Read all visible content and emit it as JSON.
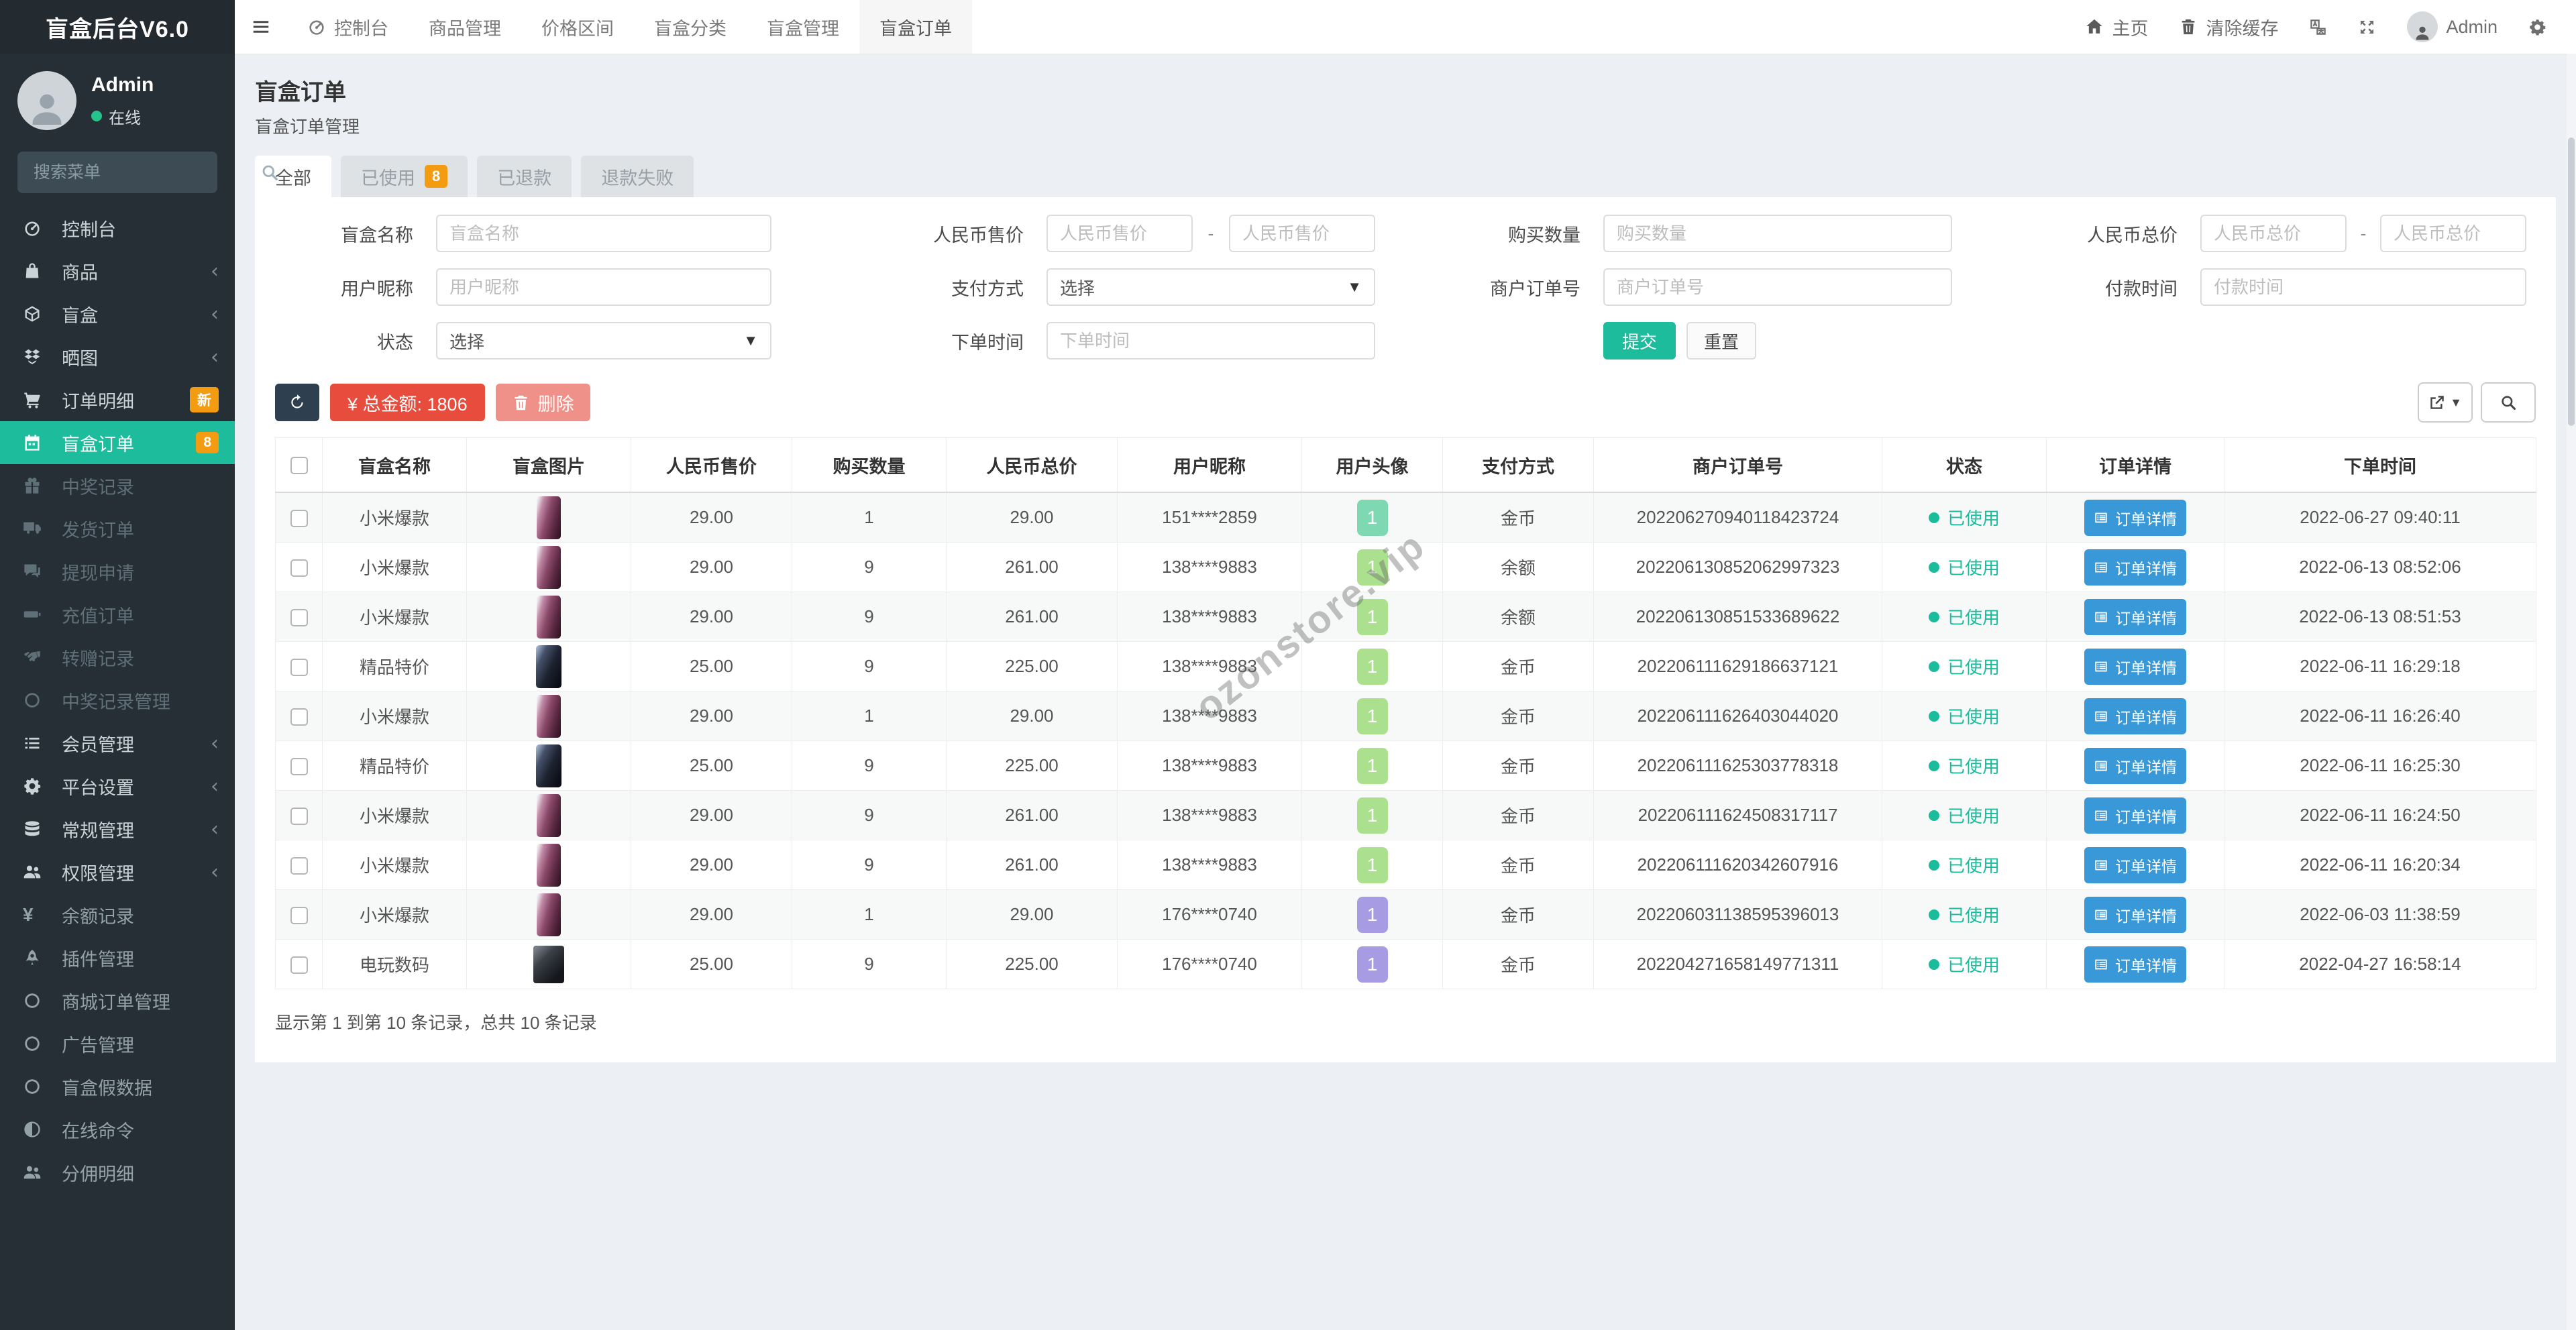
{
  "app": {
    "title": "盲盒后台V6.0"
  },
  "sidebar": {
    "user": {
      "name": "Admin",
      "status": "在线"
    },
    "search_placeholder": "搜索菜单",
    "items": [
      {
        "label": "控制台",
        "icon": "dashboard",
        "state": "bright"
      },
      {
        "label": "商品",
        "icon": "bag",
        "state": "bright",
        "chevron": true
      },
      {
        "label": "盲盒",
        "icon": "cube",
        "state": "bright",
        "chevron": true
      },
      {
        "label": "晒图",
        "icon": "dropbox",
        "state": "bright",
        "chevron": true
      },
      {
        "label": "订单明细",
        "icon": "cart",
        "state": "bright",
        "badge": "新"
      },
      {
        "label": "盲盒订单",
        "icon": "calendar",
        "state": "active",
        "badge": "8"
      },
      {
        "label": "中奖记录",
        "icon": "gift",
        "state": "dim"
      },
      {
        "label": "发货订单",
        "icon": "truck",
        "state": "dim"
      },
      {
        "label": "提现申请",
        "icon": "comments",
        "state": "dim"
      },
      {
        "label": "充值订单",
        "icon": "battery",
        "state": "dim"
      },
      {
        "label": "转赠记录",
        "icon": "handshake",
        "state": "dim"
      },
      {
        "label": "中奖记录管理",
        "icon": "circle",
        "state": "dim"
      },
      {
        "label": "会员管理",
        "icon": "list",
        "state": "bright",
        "chevron": true
      },
      {
        "label": "平台设置",
        "icon": "gear",
        "state": "bright",
        "chevron": true
      },
      {
        "label": "常规管理",
        "icon": "database",
        "state": "bright",
        "chevron": true
      },
      {
        "label": "权限管理",
        "icon": "users",
        "state": "bright",
        "chevron": true
      },
      {
        "label": "余额记录",
        "icon": "yen",
        "state": "mid"
      },
      {
        "label": "插件管理",
        "icon": "rocket",
        "state": "mid"
      },
      {
        "label": "商城订单管理",
        "icon": "circle",
        "state": "mid"
      },
      {
        "label": "广告管理",
        "icon": "circle",
        "state": "mid"
      },
      {
        "label": "盲盒假数据",
        "icon": "circle",
        "state": "mid"
      },
      {
        "label": "在线命令",
        "icon": "adjust",
        "state": "mid"
      },
      {
        "label": "分佣明细",
        "icon": "users",
        "state": "mid"
      }
    ]
  },
  "topnav": {
    "items": [
      {
        "label": "控制台",
        "icon": "dashboard"
      },
      {
        "label": "商品管理"
      },
      {
        "label": "价格区间"
      },
      {
        "label": "盲盒分类"
      },
      {
        "label": "盲盒管理"
      },
      {
        "label": "盲盒订单",
        "active": true
      }
    ]
  },
  "topbar": {
    "home": "主页",
    "clear_cache": "清除缓存",
    "username": "Admin"
  },
  "page": {
    "title": "盲盒订单",
    "subtitle": "盲盒订单管理"
  },
  "tabs": [
    {
      "label": "全部",
      "active": true
    },
    {
      "label": "已使用",
      "badge": "8"
    },
    {
      "label": "已退款"
    },
    {
      "label": "退款失败"
    }
  ],
  "filters": {
    "box_name": {
      "label": "盲盒名称",
      "placeholder": "盲盒名称"
    },
    "rmb_price": {
      "label": "人民币售价",
      "ph1": "人民币售价",
      "ph2": "人民币售价"
    },
    "buy_qty": {
      "label": "购买数量",
      "placeholder": "购买数量"
    },
    "rmb_total": {
      "label": "人民币总价",
      "ph1": "人民币总价",
      "ph2": "人民币总价"
    },
    "nickname": {
      "label": "用户昵称",
      "placeholder": "用户昵称"
    },
    "pay_type": {
      "label": "支付方式",
      "value": "选择"
    },
    "merchant_no": {
      "label": "商户订单号",
      "placeholder": "商户订单号"
    },
    "pay_time": {
      "label": "付款时间",
      "placeholder": "付款时间"
    },
    "status": {
      "label": "状态",
      "value": "选择"
    },
    "order_time": {
      "label": "下单时间",
      "placeholder": "下单时间"
    },
    "submit": "提交",
    "reset": "重置"
  },
  "toolbar": {
    "total": "¥ 总金额: 1806",
    "delete": "删除"
  },
  "table": {
    "columns": [
      "盲盒名称",
      "盲盒图片",
      "人民币售价",
      "购买数量",
      "人民币总价",
      "用户昵称",
      "用户头像",
      "支付方式",
      "商户订单号",
      "状态",
      "订单详情",
      "下单时间"
    ],
    "detail_label": "订单详情",
    "rows": [
      {
        "name": "小米爆款",
        "image": "phone-purple",
        "price": "29.00",
        "qty": "1",
        "total": "29.00",
        "nick": "151****2859",
        "avatar": "teal",
        "avatar_text": "1",
        "pay": "金币",
        "order_no": "202206270940118423724",
        "status": "已使用",
        "time": "2022-06-27 09:40:11"
      },
      {
        "name": "小米爆款",
        "image": "phone-purple",
        "price": "29.00",
        "qty": "9",
        "total": "261.00",
        "nick": "138****9883",
        "avatar": "green",
        "avatar_text": "1",
        "pay": "余额",
        "order_no": "202206130852062997323",
        "status": "已使用",
        "time": "2022-06-13 08:52:06"
      },
      {
        "name": "小米爆款",
        "image": "phone-purple",
        "price": "29.00",
        "qty": "9",
        "total": "261.00",
        "nick": "138****9883",
        "avatar": "green",
        "avatar_text": "1",
        "pay": "余额",
        "order_no": "202206130851533689622",
        "status": "已使用",
        "time": "2022-06-13 08:51:53"
      },
      {
        "name": "精品特价",
        "image": "phone-dark",
        "price": "25.00",
        "qty": "9",
        "total": "225.00",
        "nick": "138****9883",
        "avatar": "green",
        "avatar_text": "1",
        "pay": "金币",
        "order_no": "202206111629186637121",
        "status": "已使用",
        "time": "2022-06-11 16:29:18"
      },
      {
        "name": "小米爆款",
        "image": "phone-purple",
        "price": "29.00",
        "qty": "1",
        "total": "29.00",
        "nick": "138****9883",
        "avatar": "green",
        "avatar_text": "1",
        "pay": "金币",
        "order_no": "202206111626403044020",
        "status": "已使用",
        "time": "2022-06-11 16:26:40"
      },
      {
        "name": "精品特价",
        "image": "phone-dark",
        "price": "25.00",
        "qty": "9",
        "total": "225.00",
        "nick": "138****9883",
        "avatar": "green",
        "avatar_text": "1",
        "pay": "金币",
        "order_no": "202206111625303778318",
        "status": "已使用",
        "time": "2022-06-11 16:25:30"
      },
      {
        "name": "小米爆款",
        "image": "phone-purple",
        "price": "29.00",
        "qty": "9",
        "total": "261.00",
        "nick": "138****9883",
        "avatar": "green",
        "avatar_text": "1",
        "pay": "金币",
        "order_no": "202206111624508317117",
        "status": "已使用",
        "time": "2022-06-11 16:24:50"
      },
      {
        "name": "小米爆款",
        "image": "phone-purple",
        "price": "29.00",
        "qty": "9",
        "total": "261.00",
        "nick": "138****9883",
        "avatar": "green",
        "avatar_text": "1",
        "pay": "金币",
        "order_no": "202206111620342607916",
        "status": "已使用",
        "time": "2022-06-11 16:20:34"
      },
      {
        "name": "小米爆款",
        "image": "phone-purple",
        "price": "29.00",
        "qty": "1",
        "total": "29.00",
        "nick": "176****0740",
        "avatar": "purple",
        "avatar_text": "1",
        "pay": "金币",
        "order_no": "202206031138595396013",
        "status": "已使用",
        "time": "2022-06-03 11:38:59"
      },
      {
        "name": "电玩数码",
        "image": "camera-dark",
        "price": "25.00",
        "qty": "9",
        "total": "225.00",
        "nick": "176****0740",
        "avatar": "purple",
        "avatar_text": "1",
        "pay": "金币",
        "order_no": "202204271658149771311",
        "status": "已使用",
        "time": "2022-04-27 16:58:14"
      }
    ],
    "summary": "显示第 1 到第 10 条记录，总共 10 条记录"
  },
  "watermark": "ozonstore.vip",
  "colors": {
    "accent": "#1cbc9c",
    "badge_orange": "#f39c12",
    "danger_red": "#e74c3c",
    "detail_blue": "#3898d8",
    "sidebar_bg": "#272f36"
  }
}
